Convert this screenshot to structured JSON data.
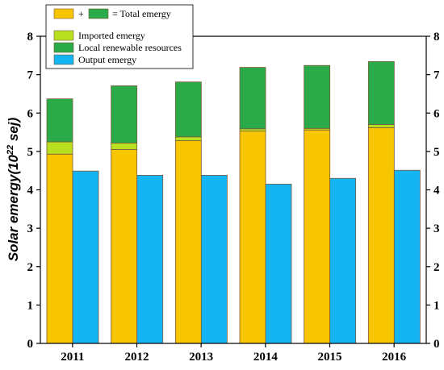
{
  "chart_data": {
    "type": "bar",
    "categories": [
      "2011",
      "2012",
      "2013",
      "2014",
      "2015",
      "2016"
    ],
    "stacked_series": [
      {
        "name": "Imported emergy",
        "values": [
          4.93,
          5.05,
          5.28,
          5.53,
          5.56,
          5.62
        ]
      },
      {
        "name": "Imported emergy",
        "values": [
          0.32,
          0.17,
          0.1,
          0.06,
          0.04,
          0.08
        ]
      },
      {
        "name": "Local renewable resources",
        "values": [
          1.12,
          1.49,
          1.43,
          1.6,
          1.64,
          1.64
        ]
      }
    ],
    "output_series": {
      "name": "Output emergy",
      "values": [
        4.49,
        4.38,
        4.38,
        4.15,
        4.3,
        4.51
      ]
    },
    "totals": [
      6.37,
      6.71,
      6.81,
      7.19,
      7.24,
      7.34
    ],
    "ylabel_prefix": "Solar emergy(10",
    "ylabel_exp": "22",
    "ylabel_suffix": " sej)",
    "ylim": [
      0,
      8
    ],
    "yticks": [
      "0",
      "1",
      "2",
      "3",
      "4",
      "5",
      "6",
      "7",
      "8"
    ],
    "grid": false,
    "legend_position": "top-left",
    "colors": {
      "imported_yellow": "#f7c600",
      "imported_light": "#b8e020",
      "local_renewable": "#2aaa48",
      "output": "#15b4f2"
    }
  },
  "legend": {
    "combo_plus": "+",
    "combo_total": "= Total emergy",
    "imported": "Imported emergy",
    "local": "Local renewable resources",
    "output": "Output emergy"
  }
}
